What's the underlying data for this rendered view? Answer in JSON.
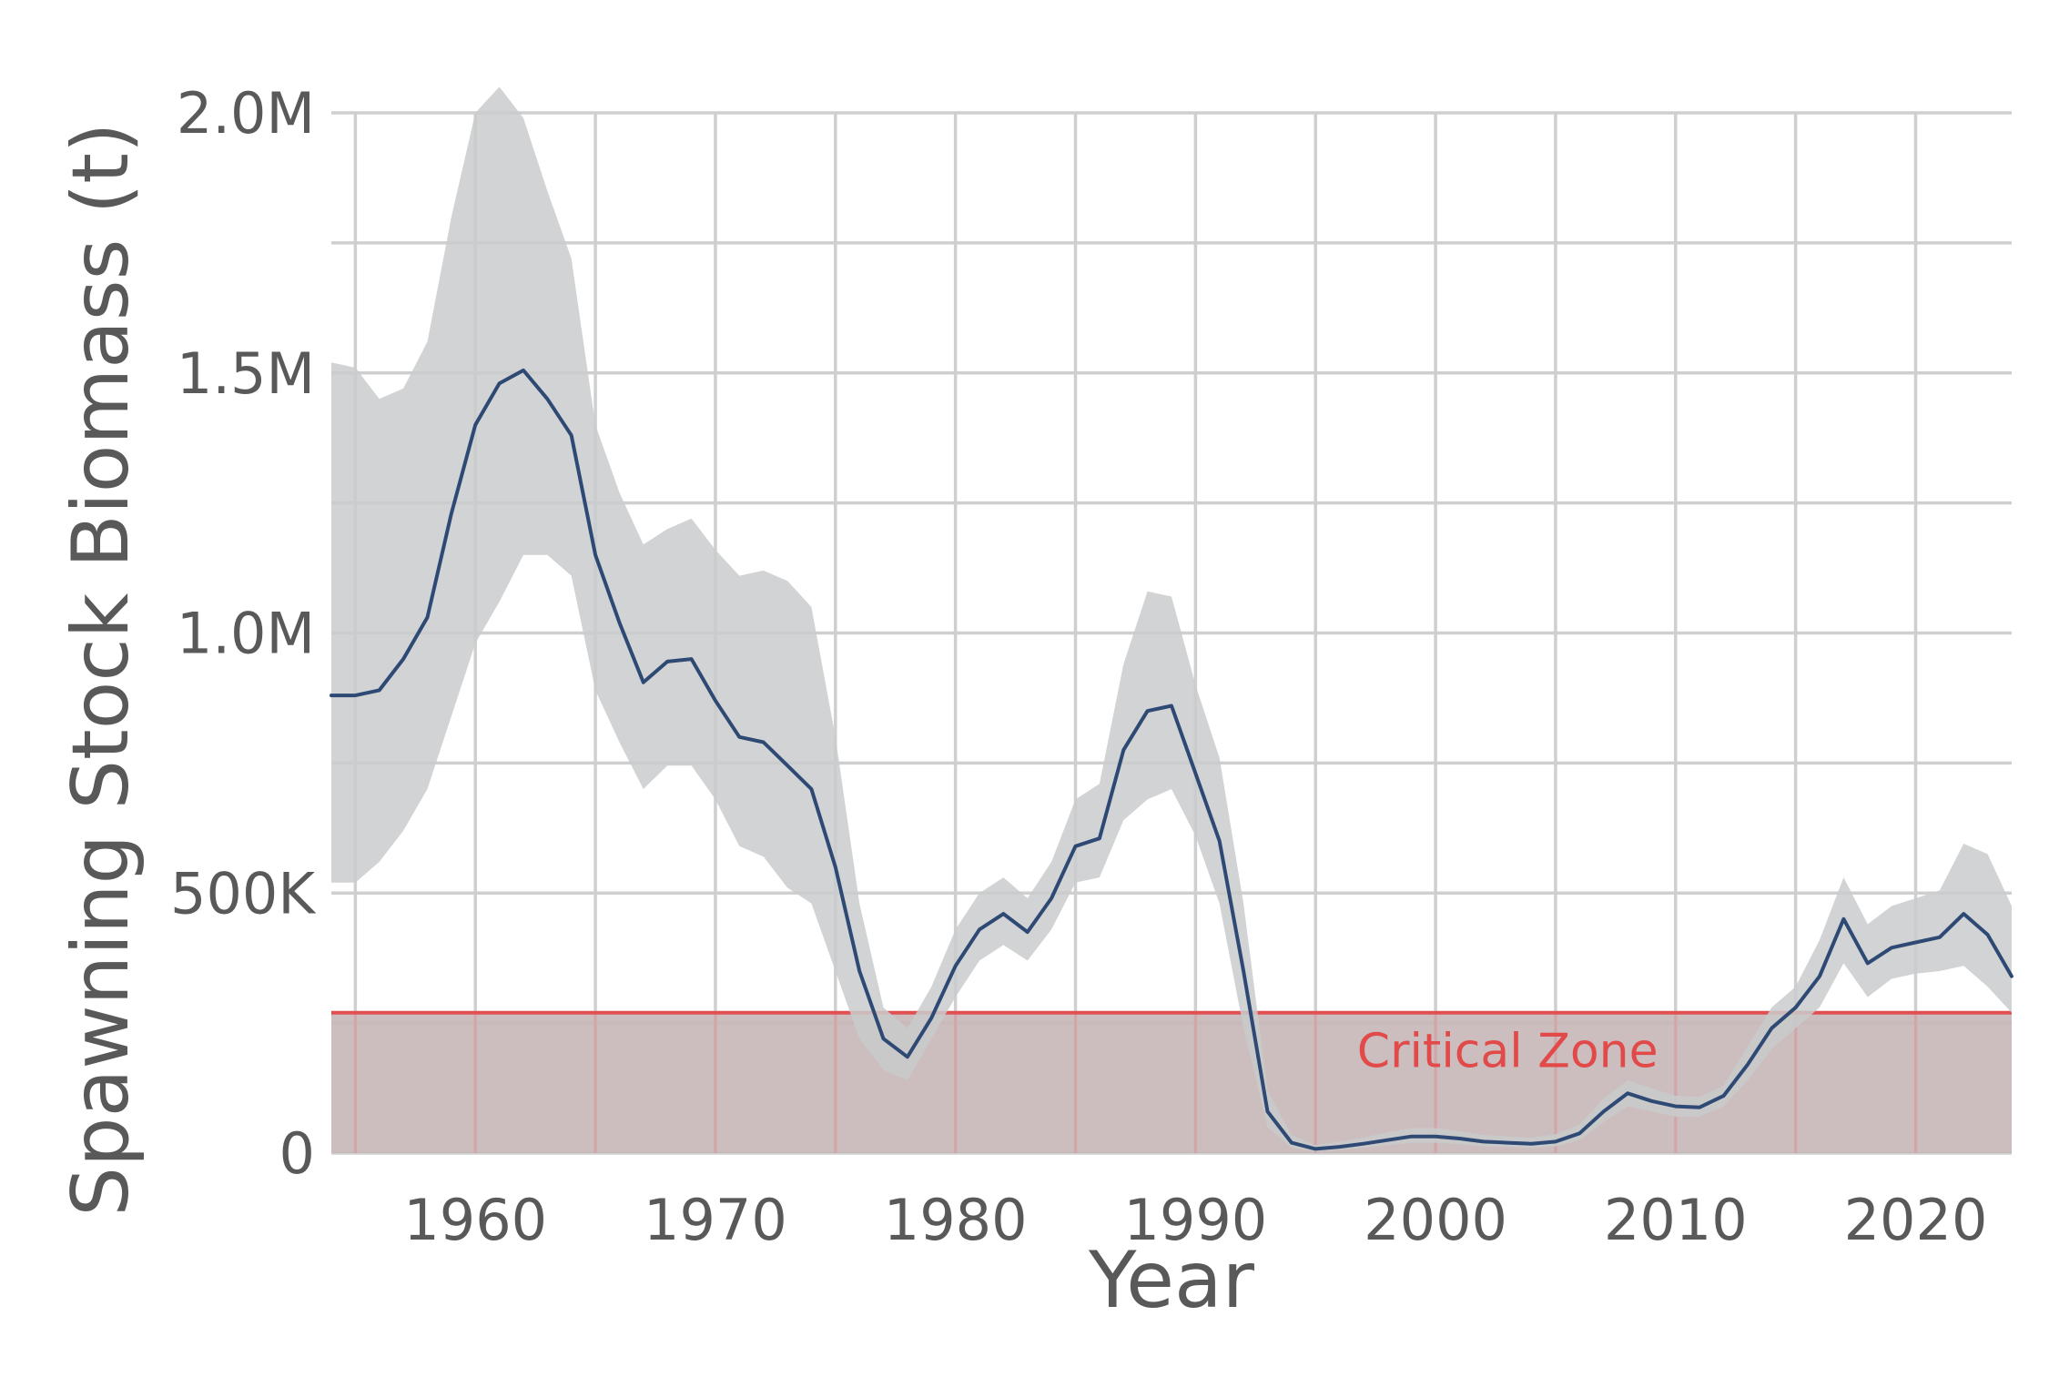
{
  "chart_data": {
    "type": "line",
    "title": "",
    "xlabel": "Year",
    "ylabel": "Spawning Stock Biomass (t)",
    "xlim": [
      1954,
      2024
    ],
    "ylim": [
      0,
      2000000
    ],
    "x_ticks": [
      1960,
      1970,
      1980,
      1990,
      2000,
      2010,
      2020
    ],
    "x_tick_labels": [
      "1960",
      "1970",
      "1980",
      "1990",
      "2000",
      "2010",
      "2020"
    ],
    "y_ticks": [
      0,
      500000,
      1000000,
      1500000,
      2000000
    ],
    "y_tick_labels": [
      "0",
      "500K",
      "1.0M",
      "1.5M",
      "2.0M"
    ],
    "grid": true,
    "colors": {
      "line": "#2e4a74",
      "band": "#c9cbcd",
      "grid": "#cfcfcf",
      "critical_line": "#e05050",
      "critical_fill": "#c8b7b8",
      "critical_text": "#e24a4a",
      "axis_text": "#595959"
    },
    "critical_zone": {
      "label": "Critical Zone",
      "threshold": 270000,
      "label_x": 2003
    },
    "x": [
      1954,
      1955,
      1956,
      1957,
      1958,
      1959,
      1960,
      1961,
      1962,
      1963,
      1964,
      1965,
      1966,
      1967,
      1968,
      1969,
      1970,
      1971,
      1972,
      1973,
      1974,
      1975,
      1976,
      1977,
      1978,
      1979,
      1980,
      1981,
      1982,
      1983,
      1984,
      1985,
      1986,
      1987,
      1988,
      1989,
      1990,
      1991,
      1992,
      1993,
      1994,
      1995,
      1996,
      1997,
      1998,
      1999,
      2000,
      2001,
      2002,
      2003,
      2004,
      2005,
      2006,
      2007,
      2008,
      2009,
      2010,
      2011,
      2012,
      2013,
      2014,
      2015,
      2016,
      2017,
      2018,
      2019,
      2020,
      2021,
      2022,
      2023,
      2024
    ],
    "series": [
      {
        "values": [
          880000,
          880000,
          890000,
          950000,
          1030000,
          1230000,
          1400000,
          1480000,
          1505000,
          1450000,
          1380000,
          1150000,
          1020000,
          905000,
          945000,
          950000,
          870000,
          800000,
          790000,
          745000,
          700000,
          550000,
          350000,
          220000,
          185000,
          260000,
          360000,
          430000,
          460000,
          425000,
          490000,
          590000,
          605000,
          775000,
          850000,
          860000,
          730000,
          600000,
          350000,
          80000,
          20000,
          8000,
          12000,
          18000,
          25000,
          32000,
          32000,
          28000,
          22000,
          20000,
          18000,
          22000,
          38000,
          80000,
          115000,
          100000,
          90000,
          88000,
          110000,
          170000,
          240000,
          280000,
          340000,
          450000,
          365000,
          395000,
          405000,
          415000,
          460000,
          420000,
          340000
        ],
        "lower": [
          520000,
          520000,
          560000,
          620000,
          700000,
          840000,
          980000,
          1060000,
          1150000,
          1150000,
          1110000,
          890000,
          790000,
          700000,
          745000,
          745000,
          680000,
          590000,
          570000,
          510000,
          480000,
          350000,
          220000,
          160000,
          140000,
          220000,
          300000,
          370000,
          400000,
          370000,
          430000,
          520000,
          530000,
          640000,
          680000,
          700000,
          610000,
          480000,
          240000,
          50000,
          10000,
          3000,
          6000,
          10000,
          15000,
          20000,
          20000,
          17000,
          13000,
          12000,
          10000,
          13000,
          25000,
          60000,
          90000,
          80000,
          70000,
          70000,
          90000,
          140000,
          200000,
          240000,
          280000,
          365000,
          300000,
          335000,
          345000,
          350000,
          360000,
          320000,
          270000
        ],
        "upper": [
          1520000,
          1510000,
          1450000,
          1470000,
          1560000,
          1800000,
          2000000,
          2050000,
          1990000,
          1850000,
          1720000,
          1400000,
          1270000,
          1170000,
          1200000,
          1220000,
          1160000,
          1110000,
          1120000,
          1100000,
          1050000,
          800000,
          480000,
          280000,
          240000,
          320000,
          430000,
          500000,
          530000,
          490000,
          560000,
          680000,
          710000,
          940000,
          1080000,
          1070000,
          900000,
          760000,
          480000,
          120000,
          35000,
          15000,
          22000,
          30000,
          40000,
          48000,
          48000,
          42000,
          35000,
          32000,
          30000,
          36000,
          55000,
          105000,
          140000,
          125000,
          110000,
          108000,
          130000,
          205000,
          280000,
          320000,
          410000,
          530000,
          440000,
          475000,
          490000,
          505000,
          595000,
          575000,
          475000
        ]
      }
    ]
  }
}
